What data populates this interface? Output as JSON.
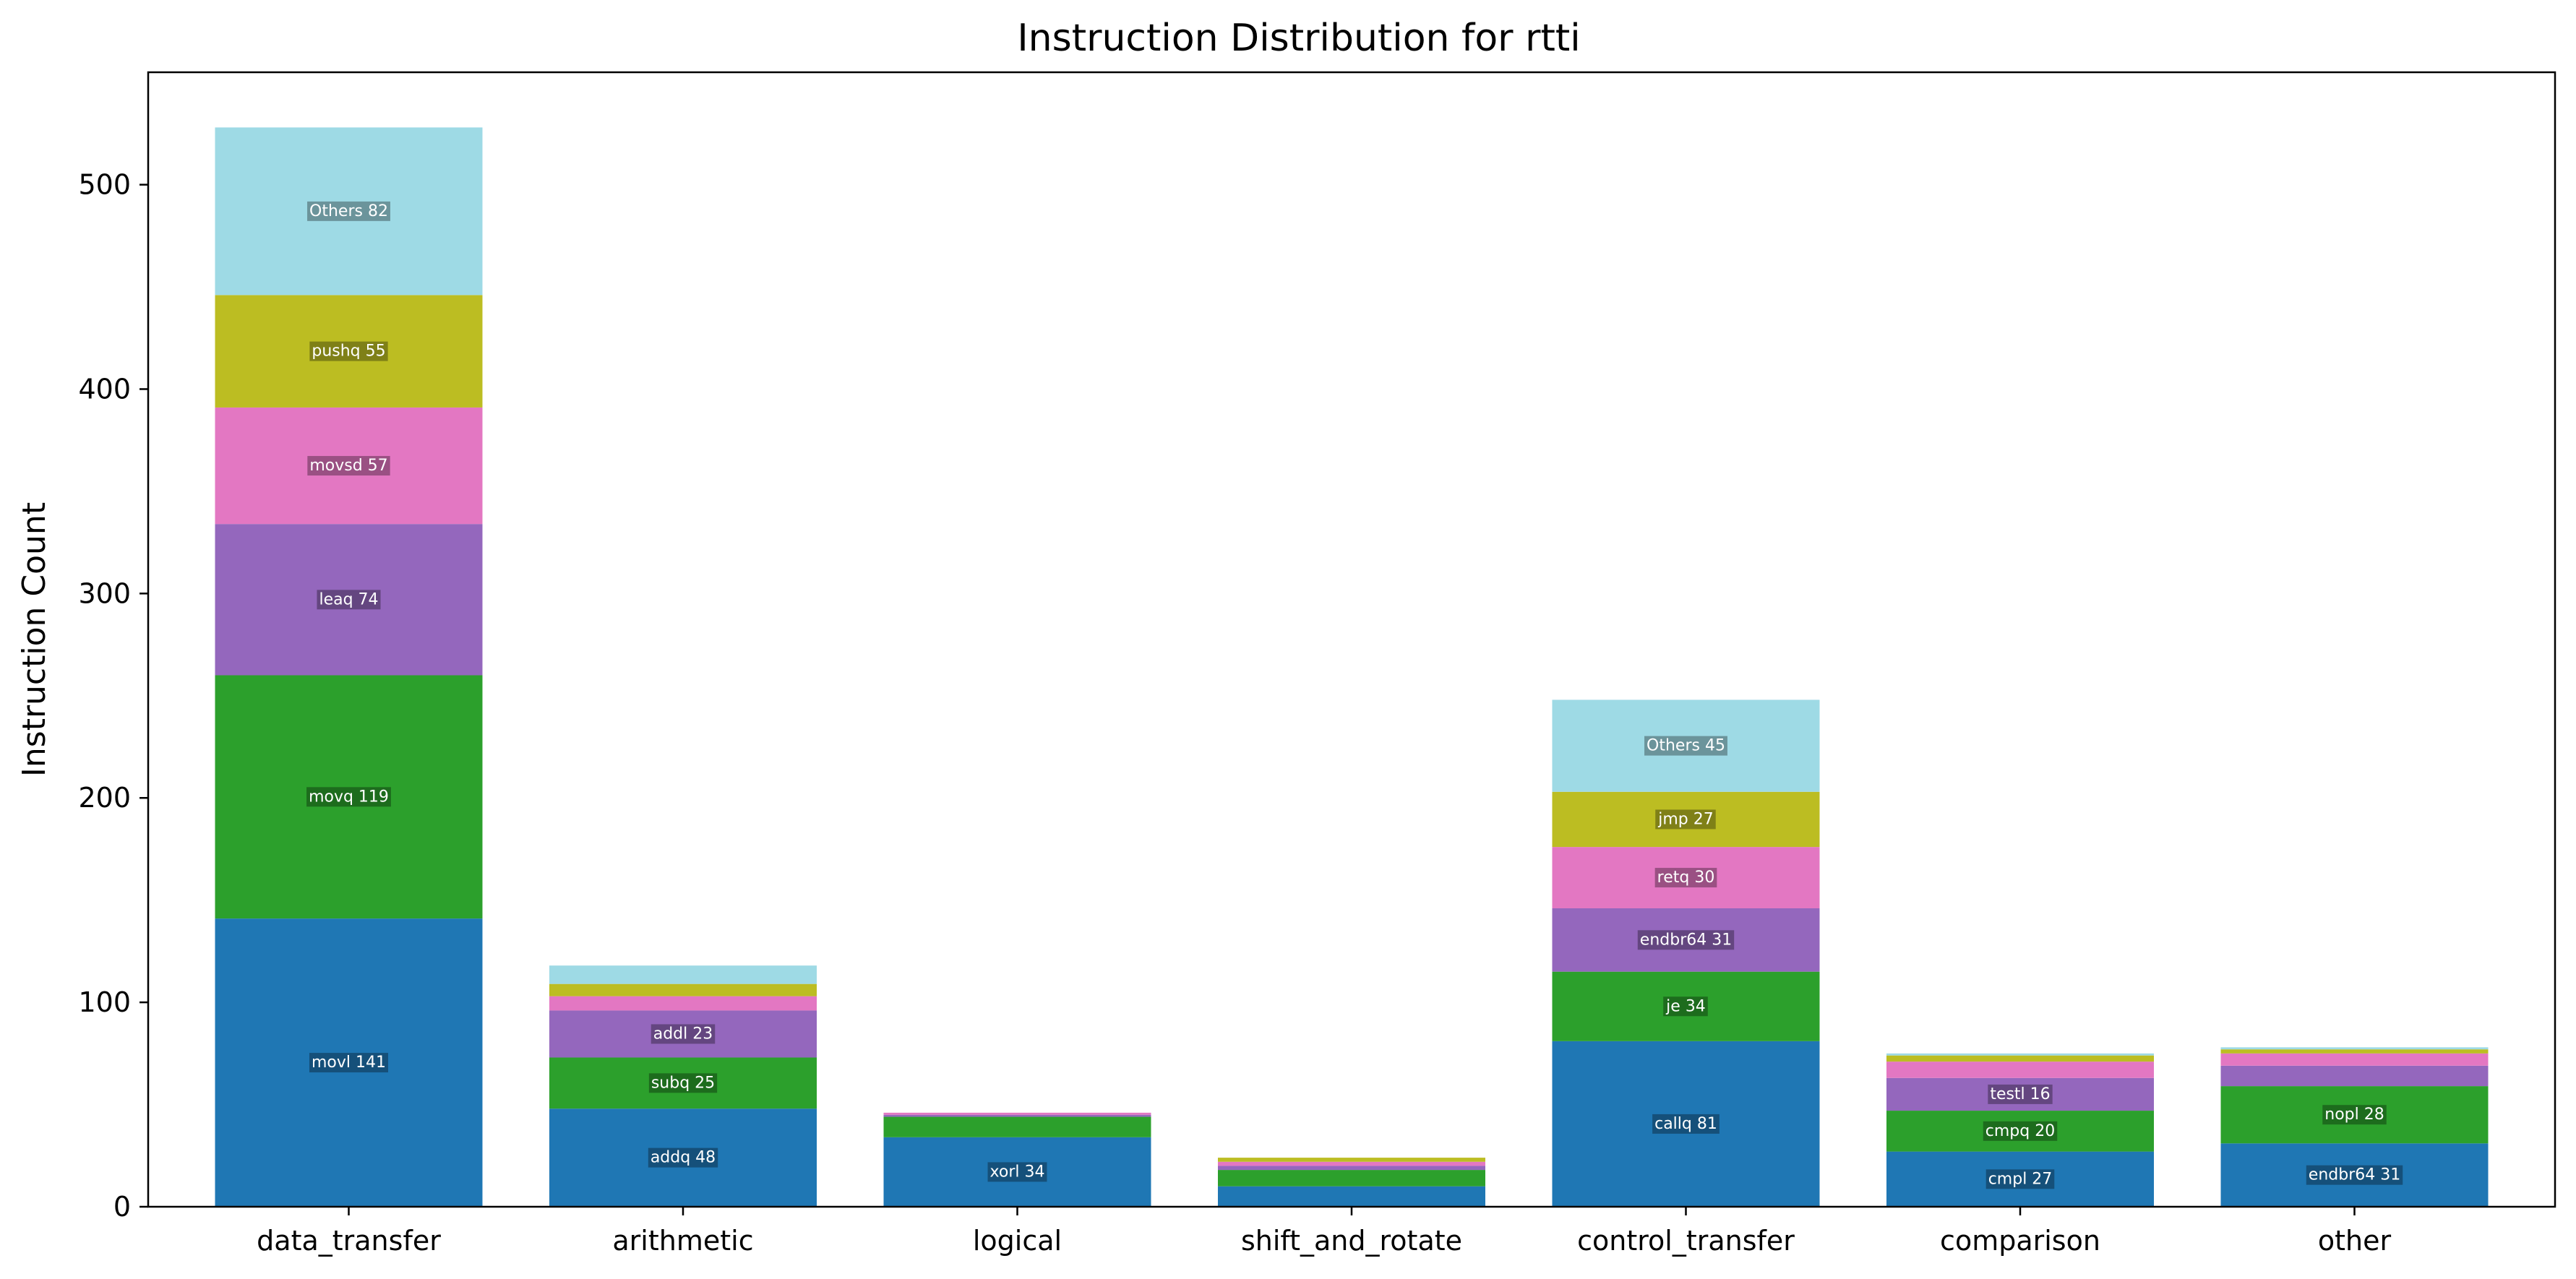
{
  "chart_data": {
    "type": "bar",
    "stacked": true,
    "title": "Instruction Distribution for rtti",
    "xlabel": "",
    "ylabel": "Instruction Count",
    "ylim": [
      0,
      555
    ],
    "yticks": [
      0,
      100,
      200,
      300,
      400,
      500
    ],
    "grid": false,
    "legend": "none",
    "layer_colors": [
      "#1f77b4",
      "#2ca02c",
      "#9467bd",
      "#e377c2",
      "#bcbd22",
      "#9edae5"
    ],
    "categories": [
      "data_transfer",
      "arithmetic",
      "logical",
      "shift_and_rotate",
      "control_transfer",
      "comparison",
      "other"
    ],
    "stacks": [
      [
        {
          "name": "movl",
          "value": 141,
          "label": "movl 141"
        },
        {
          "name": "movq",
          "value": 119,
          "label": "movq 119"
        },
        {
          "name": "leaq",
          "value": 74,
          "label": "leaq 74"
        },
        {
          "name": "movsd",
          "value": 57,
          "label": "movsd 57"
        },
        {
          "name": "pushq",
          "value": 55,
          "label": "pushq 55"
        },
        {
          "name": "Others",
          "value": 82,
          "label": "Others 82"
        }
      ],
      [
        {
          "name": "addq",
          "value": 48,
          "label": "addq 48"
        },
        {
          "name": "subq",
          "value": 25,
          "label": "subq 25"
        },
        {
          "name": "addl",
          "value": 23,
          "label": "addl 23"
        },
        {
          "name": "",
          "value": 7,
          "label": ""
        },
        {
          "name": "",
          "value": 6,
          "label": ""
        },
        {
          "name": "",
          "value": 9,
          "label": ""
        }
      ],
      [
        {
          "name": "xorl",
          "value": 34,
          "label": "xorl 34"
        },
        {
          "name": "",
          "value": 10,
          "label": ""
        },
        {
          "name": "",
          "value": 1,
          "label": ""
        },
        {
          "name": "",
          "value": 1,
          "label": ""
        }
      ],
      [
        {
          "name": "",
          "value": 10,
          "label": ""
        },
        {
          "name": "",
          "value": 8,
          "label": ""
        },
        {
          "name": "",
          "value": 2,
          "label": ""
        },
        {
          "name": "",
          "value": 2,
          "label": ""
        },
        {
          "name": "",
          "value": 2,
          "label": ""
        }
      ],
      [
        {
          "name": "callq",
          "value": 81,
          "label": "callq 81"
        },
        {
          "name": "je",
          "value": 34,
          "label": "je 34"
        },
        {
          "name": "endbr64",
          "value": 31,
          "label": "endbr64 31"
        },
        {
          "name": "retq",
          "value": 30,
          "label": "retq 30"
        },
        {
          "name": "jmp",
          "value": 27,
          "label": "jmp 27"
        },
        {
          "name": "Others",
          "value": 45,
          "label": "Others 45"
        }
      ],
      [
        {
          "name": "cmpl",
          "value": 27,
          "label": "cmpl 27"
        },
        {
          "name": "cmpq",
          "value": 20,
          "label": "cmpq 20"
        },
        {
          "name": "testl",
          "value": 16,
          "label": "testl 16"
        },
        {
          "name": "",
          "value": 8,
          "label": ""
        },
        {
          "name": "",
          "value": 3,
          "label": ""
        },
        {
          "name": "",
          "value": 1,
          "label": ""
        }
      ],
      [
        {
          "name": "endbr64",
          "value": 31,
          "label": "endbr64 31"
        },
        {
          "name": "nopl",
          "value": 28,
          "label": "nopl 28"
        },
        {
          "name": "",
          "value": 10,
          "label": ""
        },
        {
          "name": "",
          "value": 6,
          "label": ""
        },
        {
          "name": "",
          "value": 2,
          "label": ""
        },
        {
          "name": "",
          "value": 1,
          "label": ""
        }
      ]
    ]
  }
}
